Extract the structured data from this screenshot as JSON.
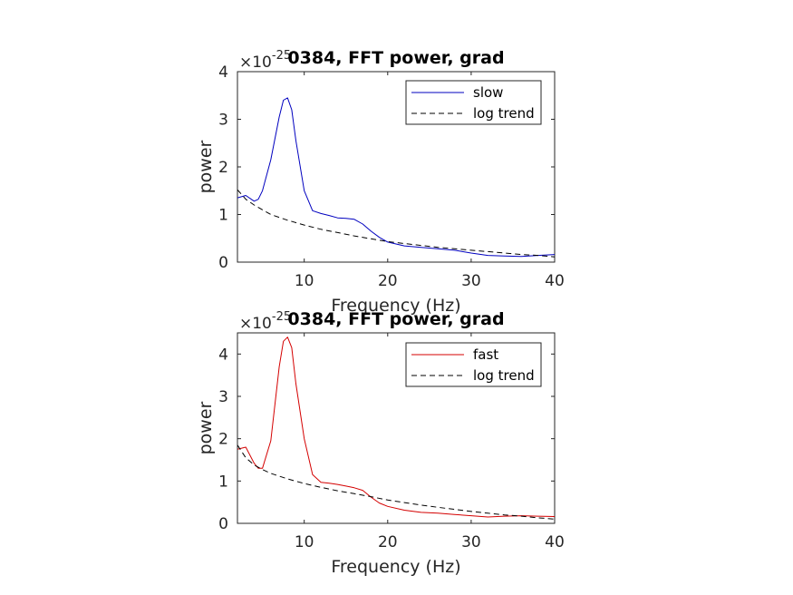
{
  "chart_data": [
    {
      "type": "line",
      "title": "0384, FFT power, grad",
      "exponent_label": "×10",
      "exponent_power": "-25",
      "xlabel": "Frequency (Hz)",
      "ylabel": "power",
      "xlim": [
        2,
        40
      ],
      "ylim": [
        0,
        4
      ],
      "xticks": [
        10,
        20,
        30,
        40
      ],
      "yticks": [
        0,
        1,
        2,
        3,
        4
      ],
      "xtick_labels": [
        "10",
        "20",
        "30",
        "40"
      ],
      "ytick_labels": [
        "0",
        "1",
        "2",
        "3",
        "4"
      ],
      "grid": false,
      "legend": "top-right",
      "series": [
        {
          "name": "slow",
          "color": "#0000bf",
          "style": "solid",
          "points": [
            [
              2,
              1.35
            ],
            [
              3,
              1.4
            ],
            [
              4,
              1.28
            ],
            [
              4.5,
              1.32
            ],
            [
              5,
              1.5
            ],
            [
              6,
              2.15
            ],
            [
              7,
              3.05
            ],
            [
              7.5,
              3.4
            ],
            [
              8,
              3.45
            ],
            [
              8.5,
              3.2
            ],
            [
              9,
              2.55
            ],
            [
              10,
              1.5
            ],
            [
              11,
              1.08
            ],
            [
              12,
              1.02
            ],
            [
              13,
              0.98
            ],
            [
              14,
              0.93
            ],
            [
              15,
              0.92
            ],
            [
              16,
              0.9
            ],
            [
              17,
              0.8
            ],
            [
              18,
              0.65
            ],
            [
              19,
              0.52
            ],
            [
              20,
              0.42
            ],
            [
              22,
              0.34
            ],
            [
              24,
              0.31
            ],
            [
              26,
              0.28
            ],
            [
              28,
              0.25
            ],
            [
              30,
              0.19
            ],
            [
              32,
              0.14
            ],
            [
              34,
              0.13
            ],
            [
              36,
              0.12
            ],
            [
              38,
              0.14
            ],
            [
              40,
              0.16
            ]
          ]
        },
        {
          "name": "log trend",
          "color": "#000000",
          "style": "dashed",
          "points": [
            [
              2,
              1.52
            ],
            [
              3,
              1.32
            ],
            [
              4,
              1.2
            ],
            [
              5,
              1.1
            ],
            [
              6,
              1.0
            ],
            [
              8,
              0.88
            ],
            [
              10,
              0.78
            ],
            [
              12,
              0.69
            ],
            [
              14,
              0.62
            ],
            [
              16,
              0.55
            ],
            [
              18,
              0.49
            ],
            [
              20,
              0.43
            ],
            [
              22,
              0.39
            ],
            [
              24,
              0.35
            ],
            [
              26,
              0.31
            ],
            [
              28,
              0.28
            ],
            [
              30,
              0.25
            ],
            [
              32,
              0.22
            ],
            [
              34,
              0.19
            ],
            [
              36,
              0.16
            ],
            [
              38,
              0.14
            ],
            [
              40,
              0.11
            ]
          ]
        }
      ]
    },
    {
      "type": "line",
      "title": "0384, FFT power, grad",
      "exponent_label": "×10",
      "exponent_power": "-25",
      "xlabel": "Frequency (Hz)",
      "ylabel": "power",
      "xlim": [
        2,
        40
      ],
      "ylim": [
        0,
        4.5
      ],
      "xticks": [
        10,
        20,
        30,
        40
      ],
      "yticks": [
        0,
        1,
        2,
        3,
        4
      ],
      "xtick_labels": [
        "10",
        "20",
        "30",
        "40"
      ],
      "ytick_labels": [
        "0",
        "1",
        "2",
        "3",
        "4"
      ],
      "grid": false,
      "legend": "top-right",
      "series": [
        {
          "name": "fast",
          "color": "#d40000",
          "style": "solid",
          "points": [
            [
              2,
              1.75
            ],
            [
              3,
              1.8
            ],
            [
              4,
              1.42
            ],
            [
              4.5,
              1.3
            ],
            [
              5,
              1.3
            ],
            [
              6,
              1.95
            ],
            [
              7,
              3.7
            ],
            [
              7.5,
              4.3
            ],
            [
              8,
              4.4
            ],
            [
              8.5,
              4.15
            ],
            [
              9,
              3.3
            ],
            [
              10,
              2.0
            ],
            [
              11,
              1.15
            ],
            [
              12,
              0.97
            ],
            [
              13,
              0.95
            ],
            [
              14,
              0.92
            ],
            [
              15,
              0.88
            ],
            [
              16,
              0.84
            ],
            [
              17,
              0.78
            ],
            [
              18,
              0.62
            ],
            [
              19,
              0.48
            ],
            [
              20,
              0.4
            ],
            [
              22,
              0.31
            ],
            [
              24,
              0.26
            ],
            [
              26,
              0.24
            ],
            [
              28,
              0.21
            ],
            [
              30,
              0.18
            ],
            [
              32,
              0.15
            ],
            [
              34,
              0.17
            ],
            [
              36,
              0.18
            ],
            [
              38,
              0.17
            ],
            [
              40,
              0.16
            ]
          ]
        },
        {
          "name": "log trend",
          "color": "#000000",
          "style": "dashed",
          "points": [
            [
              2,
              1.85
            ],
            [
              3,
              1.55
            ],
            [
              4,
              1.38
            ],
            [
              5,
              1.27
            ],
            [
              6,
              1.18
            ],
            [
              8,
              1.05
            ],
            [
              10,
              0.94
            ],
            [
              12,
              0.85
            ],
            [
              14,
              0.77
            ],
            [
              16,
              0.7
            ],
            [
              18,
              0.63
            ],
            [
              20,
              0.55
            ],
            [
              22,
              0.49
            ],
            [
              24,
              0.43
            ],
            [
              26,
              0.38
            ],
            [
              28,
              0.33
            ],
            [
              30,
              0.28
            ],
            [
              32,
              0.24
            ],
            [
              34,
              0.2
            ],
            [
              36,
              0.17
            ],
            [
              38,
              0.13
            ],
            [
              40,
              0.1
            ]
          ]
        }
      ]
    }
  ]
}
